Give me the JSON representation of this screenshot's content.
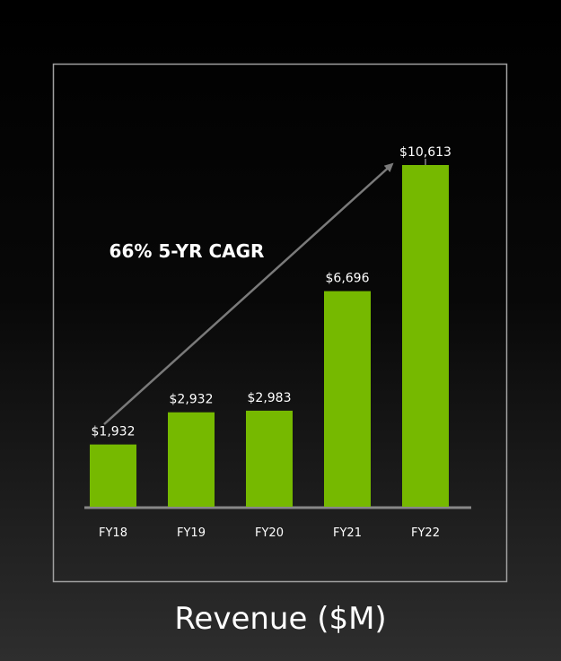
{
  "chart_data": {
    "type": "bar",
    "categories": [
      "FY18",
      "FY19",
      "FY20",
      "FY21",
      "FY22"
    ],
    "values": [
      1932,
      2932,
      2983,
      6696,
      10613
    ],
    "data_labels": [
      "$1,932",
      "$2,932",
      "$2,983",
      "$6,696",
      "$10,613"
    ],
    "annotation": "66% 5-YR CAGR",
    "ylim": [
      0,
      10613
    ],
    "grid": false,
    "legend": "none"
  },
  "colors": {
    "bar": "#76b900",
    "frame": "#a0a0a0",
    "arrow": "#7a7a7a",
    "text": "#ffffff",
    "axis": "#888888"
  },
  "caption": "Revenue ($M)"
}
